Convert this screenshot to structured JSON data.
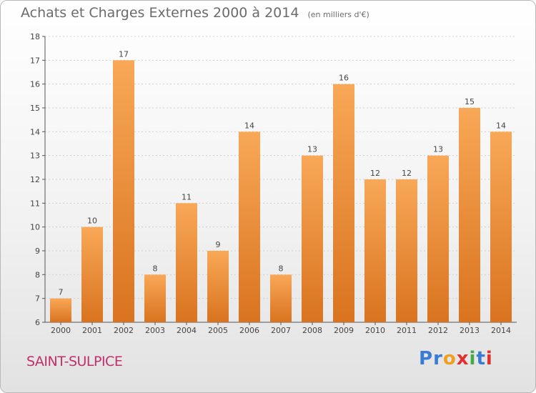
{
  "title": "Achats et Charges Externes 2000 à 2014",
  "subtitle": "(en milliers d'€)",
  "city": "SAINT-SULPICE",
  "logo": {
    "letters": [
      "P",
      "r",
      "o",
      "x",
      "i",
      "t",
      "i"
    ],
    "colors": [
      "#3a7bd5",
      "#3a7bd5",
      "#f0a020",
      "#e03030",
      "#44aa44",
      "#3a7bd5",
      "#e03030"
    ]
  },
  "colors": {
    "bar_light": "#f8a857",
    "bar_dark": "#d9731f",
    "axis": "#555555",
    "grid": "#cfcfcf",
    "label": "#444444"
  },
  "chart_data": {
    "type": "bar",
    "categories": [
      "2000",
      "2001",
      "2002",
      "2003",
      "2004",
      "2005",
      "2006",
      "2007",
      "2008",
      "2009",
      "2010",
      "2011",
      "2012",
      "2013",
      "2014"
    ],
    "values": [
      7,
      10,
      17,
      8,
      11,
      9,
      14,
      8,
      13,
      16,
      12,
      12,
      13,
      15,
      14
    ],
    "ylim": [
      6,
      18
    ],
    "yticks": [
      6,
      7,
      8,
      9,
      10,
      11,
      12,
      13,
      14,
      15,
      16,
      17,
      18
    ],
    "grid": true,
    "data_labels": true
  }
}
